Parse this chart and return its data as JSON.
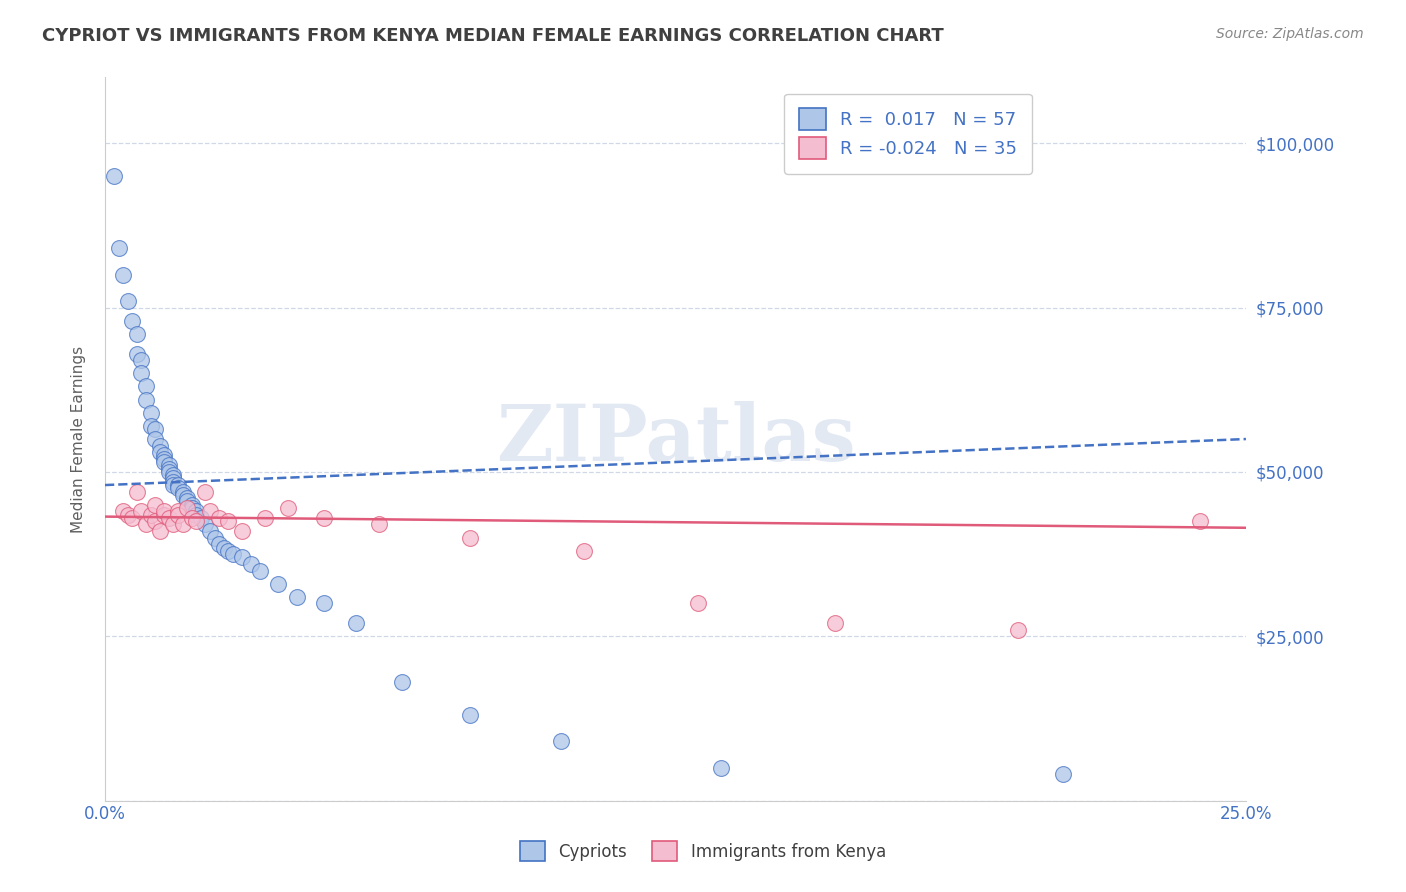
{
  "title": "CYPRIOT VS IMMIGRANTS FROM KENYA MEDIAN FEMALE EARNINGS CORRELATION CHART",
  "source": "Source: ZipAtlas.com",
  "ylabel": "Median Female Earnings",
  "xlim": [
    0.0,
    0.25
  ],
  "ylim": [
    0,
    110000
  ],
  "yticks": [
    0,
    25000,
    50000,
    75000,
    100000
  ],
  "ytick_labels": [
    "",
    "$25,000",
    "$50,000",
    "$75,000",
    "$100,000"
  ],
  "xticks": [
    0.0,
    0.05,
    0.1,
    0.15,
    0.2,
    0.25
  ],
  "xtick_labels": [
    "0.0%",
    "",
    "",
    "",
    "",
    "25.0%"
  ],
  "legend_labels": [
    "Cypriots",
    "Immigrants from Kenya"
  ],
  "r_cypriot": 0.017,
  "n_cypriot": 57,
  "r_kenya": -0.024,
  "n_kenya": 35,
  "cypriot_color": "#aec6e8",
  "kenya_color": "#f5bdd0",
  "cypriot_line_color": "#4472c4",
  "kenya_line_color": "#e05a7a",
  "title_color": "#404040",
  "axis_label_color": "#606060",
  "tick_color": "#4472c4",
  "watermark": "ZIPatlas",
  "background_color": "#ffffff",
  "grid_color": "#d0d8e8",
  "cypriot_x": [
    0.002,
    0.003,
    0.004,
    0.005,
    0.006,
    0.007,
    0.007,
    0.008,
    0.008,
    0.009,
    0.009,
    0.01,
    0.01,
    0.011,
    0.011,
    0.012,
    0.012,
    0.013,
    0.013,
    0.013,
    0.014,
    0.014,
    0.014,
    0.015,
    0.015,
    0.015,
    0.015,
    0.016,
    0.016,
    0.017,
    0.017,
    0.018,
    0.018,
    0.019,
    0.019,
    0.02,
    0.02,
    0.021,
    0.022,
    0.023,
    0.024,
    0.025,
    0.026,
    0.027,
    0.028,
    0.03,
    0.032,
    0.034,
    0.038,
    0.042,
    0.048,
    0.055,
    0.065,
    0.08,
    0.1,
    0.135,
    0.21
  ],
  "cypriot_y": [
    95000,
    84000,
    80000,
    76000,
    73000,
    71000,
    68000,
    67000,
    65000,
    63000,
    61000,
    59000,
    57000,
    56500,
    55000,
    54000,
    53000,
    52500,
    52000,
    51500,
    51000,
    50500,
    50000,
    49500,
    49000,
    48500,
    48000,
    48000,
    47500,
    47000,
    46500,
    46000,
    45500,
    45000,
    44500,
    44000,
    43500,
    43000,
    42000,
    41000,
    40000,
    39000,
    38500,
    38000,
    37500,
    37000,
    36000,
    35000,
    33000,
    31000,
    30000,
    27000,
    18000,
    13000,
    9000,
    5000,
    4000
  ],
  "kenya_x": [
    0.004,
    0.005,
    0.006,
    0.007,
    0.008,
    0.009,
    0.01,
    0.011,
    0.011,
    0.012,
    0.013,
    0.013,
    0.014,
    0.015,
    0.016,
    0.016,
    0.017,
    0.018,
    0.019,
    0.02,
    0.022,
    0.023,
    0.025,
    0.027,
    0.03,
    0.035,
    0.04,
    0.048,
    0.06,
    0.08,
    0.105,
    0.13,
    0.16,
    0.2,
    0.24
  ],
  "kenya_y": [
    44000,
    43500,
    43000,
    47000,
    44000,
    42000,
    43500,
    45000,
    42500,
    41000,
    43500,
    44000,
    43000,
    42000,
    44000,
    43500,
    42000,
    44500,
    43000,
    42500,
    47000,
    44000,
    43000,
    42500,
    41000,
    43000,
    44500,
    43000,
    42000,
    40000,
    38000,
    30000,
    27000,
    26000,
    42500
  ]
}
